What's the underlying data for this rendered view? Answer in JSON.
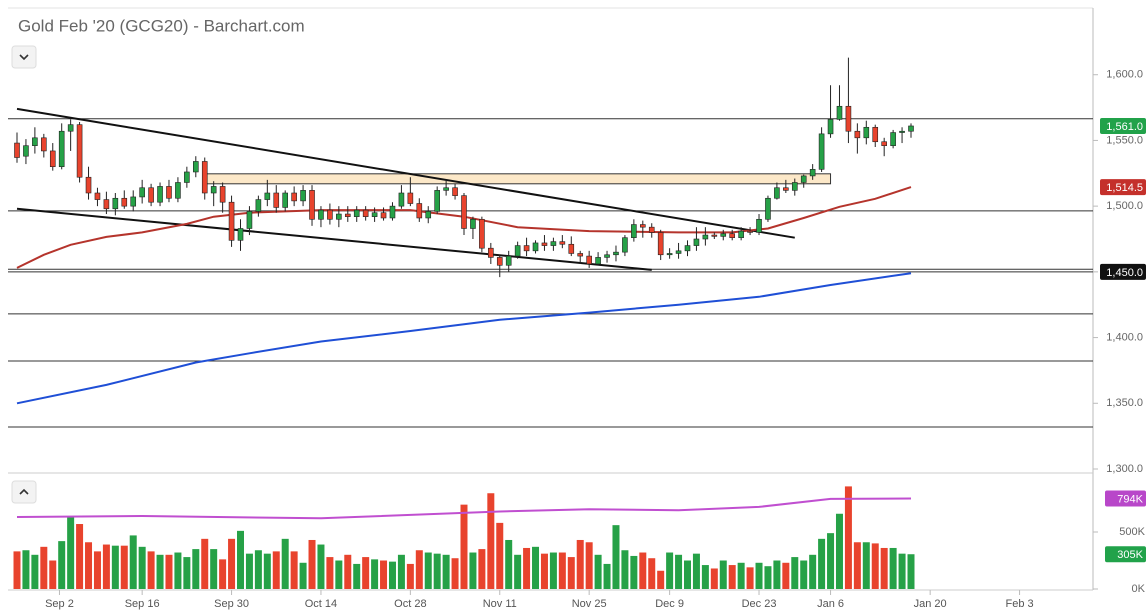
{
  "chart_data": {
    "type": "candlestick",
    "title": "Gold Feb '20 (GCG20) - Barchart.com",
    "x": [
      "Aug 26",
      "Aug 27",
      "Aug 28",
      "Aug 29",
      "Aug 30",
      "Sep 3",
      "Sep 4",
      "Sep 5",
      "Sep 6",
      "Sep 9",
      "Sep 10",
      "Sep 11",
      "Sep 12",
      "Sep 13",
      "Sep 16",
      "Sep 17",
      "Sep 18",
      "Sep 19",
      "Sep 20",
      "Sep 23",
      "Sep 24",
      "Sep 25",
      "Sep 26",
      "Sep 27",
      "Sep 30",
      "Oct 1",
      "Oct 2",
      "Oct 3",
      "Oct 4",
      "Oct 7",
      "Oct 8",
      "Oct 9",
      "Oct 10",
      "Oct 11",
      "Oct 14",
      "Oct 15",
      "Oct 16",
      "Oct 17",
      "Oct 18",
      "Oct 21",
      "Oct 22",
      "Oct 23",
      "Oct 24",
      "Oct 25",
      "Oct 28",
      "Oct 29",
      "Oct 30",
      "Oct 31",
      "Nov 1",
      "Nov 4",
      "Nov 5",
      "Nov 6",
      "Nov 7",
      "Nov 8",
      "Nov 11",
      "Nov 12",
      "Nov 13",
      "Nov 14",
      "Nov 15",
      "Nov 18",
      "Nov 19",
      "Nov 20",
      "Nov 21",
      "Nov 22",
      "Nov 25",
      "Nov 26",
      "Nov 27",
      "Nov 29",
      "Dec 2",
      "Dec 3",
      "Dec 4",
      "Dec 5",
      "Dec 6",
      "Dec 9",
      "Dec 10",
      "Dec 11",
      "Dec 12",
      "Dec 13",
      "Dec 16",
      "Dec 17",
      "Dec 18",
      "Dec 19",
      "Dec 20",
      "Dec 23",
      "Dec 24",
      "Dec 26",
      "Dec 27",
      "Dec 30",
      "Dec 31",
      "Jan 2",
      "Jan 3",
      "Jan 6",
      "Jan 7",
      "Jan 8",
      "Jan 9",
      "Jan 10",
      "Jan 13",
      "Jan 14",
      "Jan 15",
      "Jan 16",
      "Jan 17"
    ],
    "open": [
      1548,
      1538,
      1546,
      1552,
      1542,
      1530,
      1557,
      1562,
      1522,
      1510,
      1505,
      1498,
      1506,
      1500,
      1507,
      1514,
      1503,
      1515,
      1506,
      1518,
      1526,
      1534,
      1510,
      1515,
      1503,
      1474,
      1483,
      1496,
      1505,
      1510,
      1499,
      1510,
      1504,
      1512,
      1490,
      1497,
      1490,
      1494,
      1492,
      1497,
      1492,
      1495,
      1491,
      1500,
      1510,
      1502,
      1491,
      1496,
      1512,
      1514,
      1508,
      1483,
      1490,
      1468,
      1461,
      1455,
      1462,
      1470,
      1466,
      1472,
      1470,
      1473,
      1471,
      1464,
      1462,
      1456,
      1461,
      1463,
      1465,
      1476,
      1486,
      1484,
      1480,
      1463,
      1464,
      1466,
      1470,
      1475,
      1478,
      1477,
      1479,
      1476,
      1481,
      1480,
      1490,
      1506,
      1514,
      1512,
      1518,
      1523,
      1528,
      1555,
      1566,
      1576,
      1557,
      1552,
      1560,
      1549,
      1546,
      1556,
      1557
    ],
    "high": [
      1556,
      1551,
      1560,
      1555,
      1548,
      1563,
      1566,
      1564,
      1530,
      1514,
      1511,
      1510,
      1512,
      1512,
      1520,
      1517,
      1518,
      1520,
      1522,
      1530,
      1538,
      1537,
      1519,
      1518,
      1508,
      1490,
      1500,
      1508,
      1520,
      1516,
      1512,
      1515,
      1516,
      1516,
      1500,
      1502,
      1500,
      1500,
      1500,
      1500,
      1499,
      1499,
      1503,
      1516,
      1522,
      1506,
      1500,
      1515,
      1520,
      1517,
      1510,
      1492,
      1492,
      1472,
      1463,
      1466,
      1473,
      1476,
      1474,
      1478,
      1476,
      1478,
      1477,
      1466,
      1466,
      1465,
      1466,
      1470,
      1478,
      1490,
      1489,
      1487,
      1482,
      1468,
      1472,
      1474,
      1484,
      1484,
      1480,
      1482,
      1482,
      1484,
      1484,
      1494,
      1508,
      1518,
      1520,
      1521,
      1524,
      1532,
      1560,
      1592,
      1592,
      1613,
      1563,
      1565,
      1562,
      1552,
      1558,
      1560,
      1563
    ],
    "low": [
      1533,
      1532,
      1540,
      1537,
      1527,
      1528,
      1542,
      1518,
      1505,
      1500,
      1494,
      1493,
      1498,
      1496,
      1502,
      1500,
      1500,
      1503,
      1503,
      1514,
      1522,
      1505,
      1500,
      1495,
      1469,
      1466,
      1478,
      1492,
      1500,
      1495,
      1496,
      1500,
      1500,
      1485,
      1484,
      1486,
      1484,
      1488,
      1488,
      1489,
      1488,
      1489,
      1489,
      1498,
      1500,
      1488,
      1487,
      1494,
      1508,
      1505,
      1478,
      1475,
      1465,
      1456,
      1446,
      1450,
      1460,
      1462,
      1464,
      1466,
      1466,
      1468,
      1462,
      1456,
      1453,
      1455,
      1457,
      1458,
      1462,
      1473,
      1476,
      1476,
      1459,
      1460,
      1460,
      1462,
      1466,
      1470,
      1475,
      1474,
      1474,
      1474,
      1478,
      1478,
      1488,
      1505,
      1510,
      1508,
      1514,
      1520,
      1526,
      1552,
      1565,
      1548,
      1540,
      1547,
      1545,
      1538,
      1544,
      1548,
      1552
    ],
    "close": [
      1537,
      1546,
      1552,
      1542,
      1530,
      1557,
      1562,
      1522,
      1510,
      1505,
      1498,
      1506,
      1500,
      1507,
      1514,
      1503,
      1515,
      1506,
      1518,
      1526,
      1534,
      1510,
      1515,
      1503,
      1474,
      1483,
      1496,
      1505,
      1510,
      1499,
      1510,
      1504,
      1512,
      1490,
      1497,
      1490,
      1494,
      1492,
      1497,
      1492,
      1495,
      1491,
      1500,
      1510,
      1502,
      1491,
      1496,
      1512,
      1514,
      1508,
      1483,
      1490,
      1468,
      1461,
      1455,
      1462,
      1470,
      1466,
      1472,
      1470,
      1473,
      1471,
      1464,
      1462,
      1456,
      1461,
      1463,
      1465,
      1476,
      1486,
      1484,
      1480,
      1463,
      1464,
      1466,
      1470,
      1475,
      1478,
      1477,
      1479,
      1476,
      1481,
      1480,
      1490,
      1506,
      1514,
      1512,
      1518,
      1523,
      1528,
      1555,
      1566,
      1576,
      1557,
      1552,
      1560,
      1549,
      1546,
      1556,
      1557,
      1561
    ],
    "up_color": "#26a147",
    "down_color": "#e8432d",
    "ylim": [
      1300,
      1650
    ],
    "yticks": [
      {
        "value": 1300,
        "label": "1,300.0"
      },
      {
        "value": 1350,
        "label": "1,350.0"
      },
      {
        "value": 1400,
        "label": "1,400.0"
      },
      {
        "value": 1450,
        "label": "1,450.0"
      },
      {
        "value": 1500,
        "label": "1,500.0"
      },
      {
        "value": 1550,
        "label": "1,550.0"
      },
      {
        "value": 1600,
        "label": "1,600.0"
      }
    ],
    "xticks": [
      "Sep 2",
      "Sep 16",
      "Sep 30",
      "Oct 14",
      "Oct 28",
      "Nov 11",
      "Nov 25",
      "Dec 9",
      "Dec 23",
      "Jan 6",
      "Jan 20",
      "Feb 3"
    ],
    "moving_averages": [
      {
        "color": "#b5342c",
        "x": [
          "Aug 26",
          "Aug 29",
          "Sep 4",
          "Sep 10",
          "Sep 16",
          "Sep 23",
          "Sep 26",
          "Oct 2",
          "Oct 14",
          "Oct 28",
          "Nov 5",
          "Nov 13",
          "Nov 25",
          "Dec 10",
          "Dec 18",
          "Dec 24",
          "Dec 31",
          "Jan 7",
          "Jan 13",
          "Jan 17"
        ],
        "values": [
          1453,
          1463,
          1470.6,
          1476.6,
          1480,
          1486.5,
          1492,
          1495,
          1497,
          1497,
          1492,
          1484,
          1481,
          1480,
          1480,
          1483,
          1491,
          1499.5,
          1505.6,
          1514.5
        ]
      },
      {
        "color": "#1f4fd6",
        "x": [
          "Aug 26",
          "Sep 10",
          "Sep 24",
          "Oct 2",
          "Oct 14",
          "Oct 28",
          "Nov 11",
          "Nov 25",
          "Dec 10",
          "Dec 23",
          "Jan 6",
          "Jan 17"
        ],
        "values": [
          1350,
          1364,
          1381,
          1388,
          1397,
          1405,
          1413.5,
          1419,
          1425,
          1431,
          1440,
          1449
        ]
      }
    ],
    "trendlines": [
      {
        "x": [
          "Aug 26",
          "Dec 30"
        ],
        "values": [
          1574,
          1476
        ]
      },
      {
        "x": [
          "Aug 26",
          "Dec 5"
        ],
        "values": [
          1498,
          1451.5
        ]
      }
    ],
    "zones": [
      {
        "x": [
          "Sep 25",
          "Jan 6"
        ],
        "values": [
          1517,
          1524.6
        ]
      }
    ],
    "levels": [
      1566.5,
      1496.4,
      1452,
      1450,
      1418,
      1382.2,
      1332
    ],
    "price_labels": [
      {
        "value": 1561,
        "label": "1,561.0",
        "color": "#21a24a"
      },
      {
        "value": 1514.5,
        "label": "1,514.5",
        "color": "#c4302b"
      },
      {
        "value": 1450,
        "label": "1,450.0",
        "color": "#111111"
      }
    ],
    "volume": {
      "values": [
        330000,
        340000,
        300000,
        370000,
        250000,
        420000,
        630000,
        570000,
        410000,
        330000,
        390000,
        380000,
        380000,
        470000,
        370000,
        330000,
        300000,
        300000,
        320000,
        280000,
        350000,
        440000,
        350000,
        260000,
        440000,
        510000,
        310000,
        340000,
        310000,
        330000,
        440000,
        330000,
        230000,
        430000,
        390000,
        280000,
        250000,
        300000,
        220000,
        280000,
        260000,
        250000,
        240000,
        300000,
        220000,
        340000,
        320000,
        310000,
        300000,
        270000,
        740000,
        320000,
        350000,
        840000,
        580000,
        430000,
        300000,
        360000,
        370000,
        310000,
        320000,
        320000,
        280000,
        430000,
        410000,
        300000,
        220000,
        560000,
        340000,
        290000,
        320000,
        270000,
        160000,
        320000,
        300000,
        250000,
        310000,
        210000,
        180000,
        250000,
        210000,
        230000,
        190000,
        230000,
        200000,
        250000,
        230000,
        280000,
        250000,
        300000,
        440000,
        490000,
        660000,
        900000,
        410000,
        410000,
        400000,
        360000,
        360000,
        310000,
        305000
      ],
      "ylim": [
        0,
        1000000
      ],
      "yticks": [
        {
          "value": 0,
          "label": "0K"
        },
        {
          "value": 500000,
          "label": "500K"
        }
      ],
      "average": {
        "color": "#c04fd0",
        "x": [
          "Aug 26",
          "Sep 16",
          "Oct 14",
          "Nov 11",
          "Nov 25",
          "Dec 10",
          "Dec 23",
          "Jan 6",
          "Jan 17"
        ],
        "values": [
          632000,
          640000,
          620000,
          680000,
          700000,
          690000,
          720000,
          790000,
          794000
        ]
      },
      "labels": [
        {
          "value": 794000,
          "label": "794K",
          "color": "#b847c9"
        },
        {
          "value": 305000,
          "label": "305K",
          "color": "#21a24a"
        }
      ]
    }
  }
}
